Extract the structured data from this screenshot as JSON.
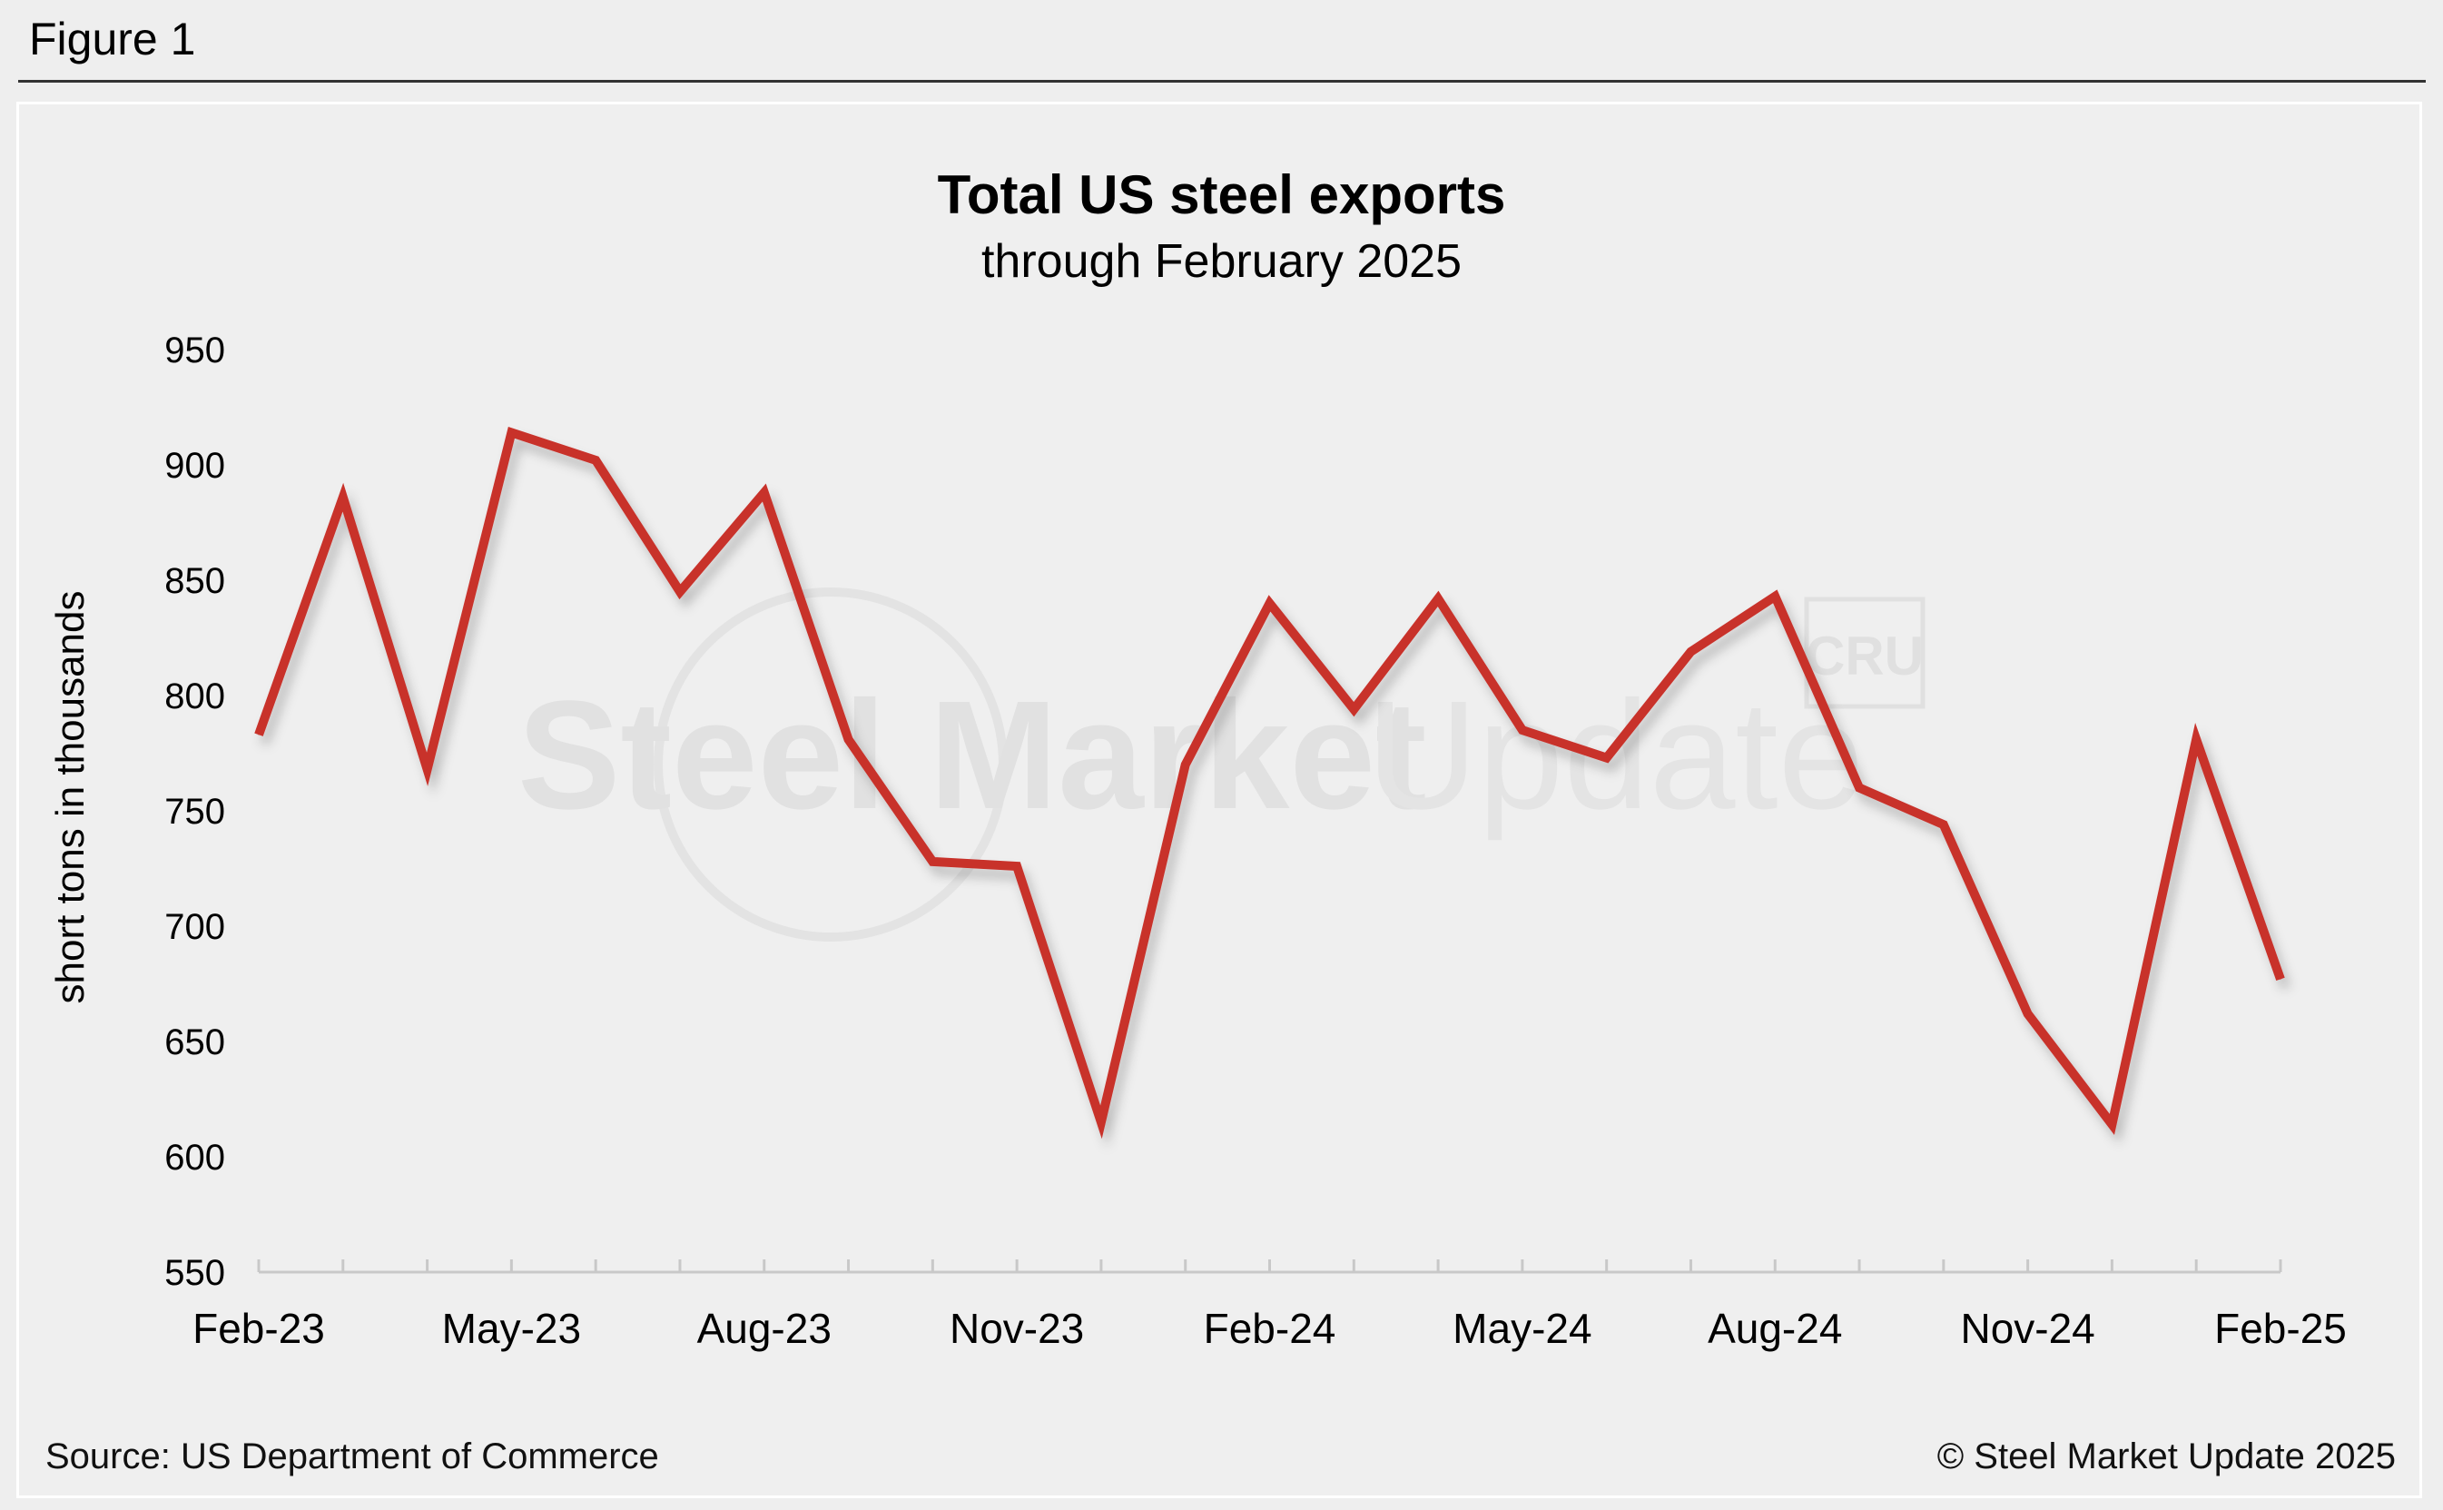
{
  "figure_label": "Figure 1",
  "footer": {
    "source": "Source: US Department of Commerce",
    "copyright": "© Steel Market Update 2025"
  },
  "watermark": {
    "word1": "Steel Market",
    "word2": "Update",
    "badge": "CRU"
  },
  "colors": {
    "line": "#c8302b",
    "axis": "#c8c8c8",
    "background": "#efefef"
  },
  "chart_data": {
    "type": "line",
    "title": "Total US steel exports",
    "subtitle": "through February 2025",
    "ylabel": "short tons in thousands",
    "xlabel": "",
    "ylim": [
      550,
      950
    ],
    "y_ticks": [
      950,
      900,
      850,
      800,
      750,
      700,
      650,
      600,
      550
    ],
    "grid": false,
    "x_tick_labels": [
      "Feb-23",
      "May-23",
      "Aug-23",
      "Nov-23",
      "Feb-24",
      "May-24",
      "Aug-24",
      "Nov-24",
      "Feb-25"
    ],
    "categories": [
      "Feb-23",
      "Mar-23",
      "Apr-23",
      "May-23",
      "Jun-23",
      "Jul-23",
      "Aug-23",
      "Sep-23",
      "Oct-23",
      "Nov-23",
      "Dec-23",
      "Jan-24",
      "Feb-24",
      "Mar-24",
      "Apr-24",
      "May-24",
      "Jun-24",
      "Jul-24",
      "Aug-24",
      "Sep-24",
      "Oct-24",
      "Nov-24",
      "Dec-24",
      "Jan-25",
      "Feb-25"
    ],
    "series": [
      {
        "values": [
          783,
          886,
          768,
          914,
          902,
          845,
          888,
          781,
          728,
          726,
          615,
          770,
          840,
          794,
          842,
          785,
          773,
          819,
          843,
          760,
          744,
          662,
          614,
          781,
          677
        ]
      }
    ]
  }
}
